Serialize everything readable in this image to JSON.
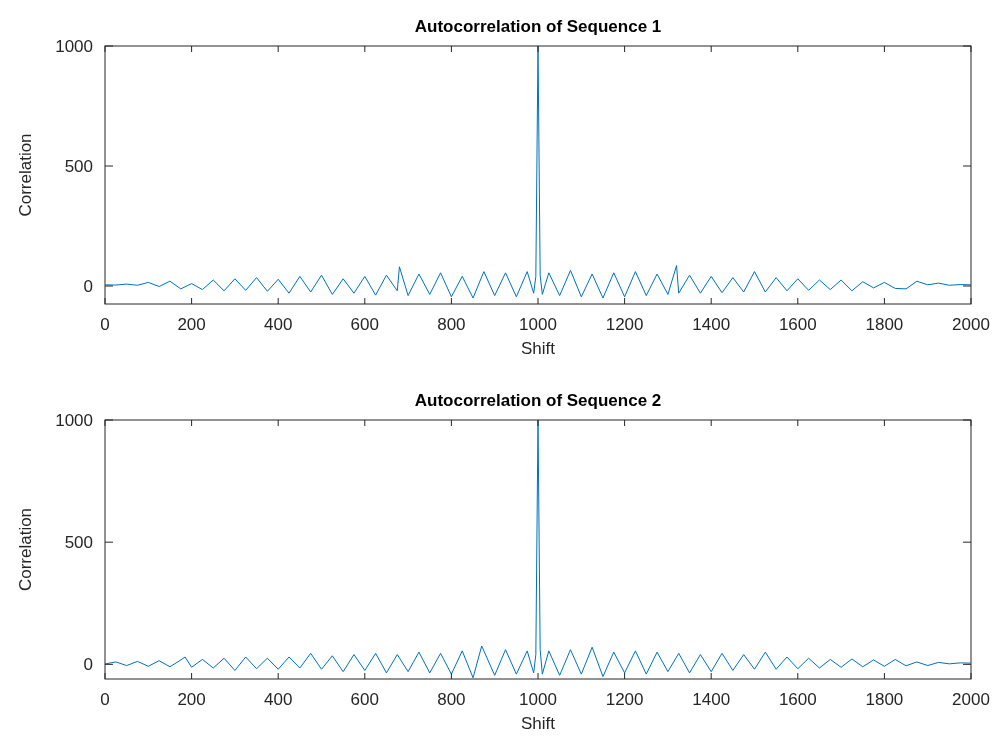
{
  "chart_data": [
    {
      "type": "line",
      "title": "Autocorrelation of Sequence 1",
      "xlabel": "Shift",
      "ylabel": "Correlation",
      "xlim": [
        0,
        2000
      ],
      "xticks": [
        0,
        200,
        400,
        600,
        800,
        1000,
        1200,
        1400,
        1600,
        1800,
        2000
      ],
      "ylim": [
        -75,
        1000
      ],
      "yticks": [
        0,
        500,
        1000
      ],
      "series": [
        {
          "color": "#0072bd",
          "x": [
            1,
            25,
            50,
            75,
            100,
            125,
            150,
            175,
            200,
            225,
            250,
            275,
            300,
            325,
            350,
            375,
            400,
            425,
            450,
            475,
            500,
            525,
            550,
            575,
            600,
            625,
            650,
            675,
            680,
            700,
            725,
            750,
            775,
            800,
            825,
            850,
            875,
            900,
            925,
            950,
            975,
            990,
            995,
            1000,
            1005,
            1010,
            1025,
            1050,
            1075,
            1100,
            1125,
            1150,
            1175,
            1200,
            1225,
            1250,
            1275,
            1300,
            1320,
            1325,
            1350,
            1375,
            1400,
            1425,
            1450,
            1475,
            1500,
            1525,
            1550,
            1575,
            1600,
            1625,
            1650,
            1675,
            1700,
            1725,
            1750,
            1775,
            1800,
            1825,
            1850,
            1875,
            1900,
            1925,
            1950,
            1975,
            1999
          ],
          "values": [
            5,
            4,
            8,
            3,
            15,
            -2,
            20,
            -12,
            10,
            -15,
            25,
            -20,
            30,
            -18,
            35,
            -22,
            28,
            -30,
            40,
            -25,
            45,
            -35,
            30,
            -30,
            40,
            -38,
            45,
            -20,
            80,
            -40,
            50,
            -35,
            55,
            -45,
            40,
            -50,
            60,
            -40,
            55,
            -45,
            60,
            -30,
            40,
            1000,
            45,
            -35,
            55,
            -40,
            65,
            -45,
            50,
            -50,
            55,
            -45,
            60,
            -40,
            50,
            -35,
            85,
            -30,
            45,
            -30,
            40,
            -28,
            35,
            -25,
            60,
            -25,
            35,
            -20,
            30,
            -18,
            25,
            -15,
            25,
            -20,
            18,
            -8,
            15,
            -10,
            -12,
            20,
            5,
            12,
            3,
            6,
            5
          ]
        }
      ]
    },
    {
      "type": "line",
      "title": "Autocorrelation of Sequence 2",
      "xlabel": "Shift",
      "ylabel": "Correlation",
      "xlim": [
        0,
        2000
      ],
      "xticks": [
        0,
        200,
        400,
        600,
        800,
        1000,
        1200,
        1400,
        1600,
        1800,
        2000
      ],
      "ylim": [
        -60,
        1000
      ],
      "yticks": [
        0,
        500,
        1000
      ],
      "series": [
        {
          "color": "#0072bd",
          "x": [
            1,
            25,
            50,
            75,
            100,
            125,
            150,
            175,
            185,
            200,
            225,
            250,
            275,
            300,
            325,
            350,
            375,
            400,
            425,
            450,
            475,
            500,
            525,
            550,
            575,
            600,
            625,
            650,
            675,
            700,
            725,
            750,
            775,
            800,
            825,
            850,
            870,
            900,
            925,
            950,
            975,
            990,
            995,
            1000,
            1005,
            1010,
            1025,
            1050,
            1075,
            1100,
            1125,
            1150,
            1175,
            1200,
            1225,
            1250,
            1275,
            1300,
            1325,
            1350,
            1375,
            1400,
            1425,
            1450,
            1475,
            1500,
            1525,
            1550,
            1575,
            1600,
            1625,
            1650,
            1675,
            1700,
            1725,
            1750,
            1775,
            1800,
            1825,
            1850,
            1875,
            1900,
            1925,
            1950,
            1975,
            1999
          ],
          "values": [
            2,
            10,
            -5,
            12,
            -8,
            15,
            -10,
            18,
            30,
            -12,
            20,
            -15,
            25,
            -25,
            30,
            -18,
            25,
            -20,
            30,
            -15,
            45,
            -20,
            35,
            -30,
            40,
            -25,
            45,
            -35,
            40,
            -30,
            50,
            -35,
            45,
            -40,
            55,
            -55,
            75,
            -45,
            60,
            -40,
            55,
            -35,
            40,
            1000,
            60,
            -40,
            55,
            -45,
            60,
            -40,
            70,
            -50,
            50,
            -35,
            55,
            -40,
            50,
            -30,
            45,
            -35,
            40,
            -30,
            45,
            -25,
            40,
            -20,
            50,
            -20,
            30,
            -18,
            25,
            -15,
            20,
            -12,
            22,
            -10,
            18,
            -8,
            20,
            -6,
            10,
            -5,
            8,
            2,
            6,
            5
          ]
        }
      ]
    }
  ]
}
